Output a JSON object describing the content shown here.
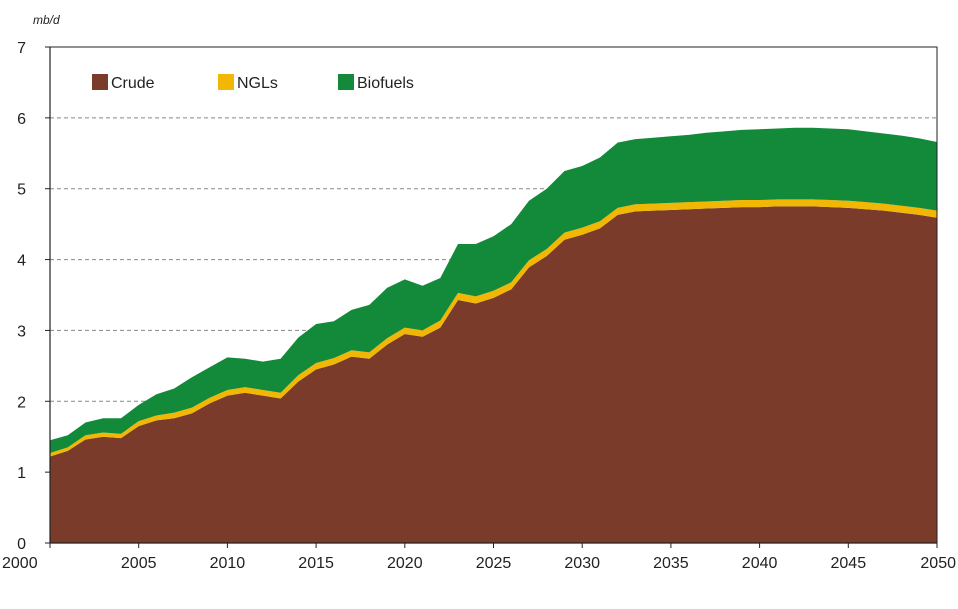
{
  "chart_data": {
    "type": "area",
    "stacked": true,
    "unit_label": "mb/d",
    "title": "",
    "xlabel": "",
    "ylabel": "",
    "xlim": [
      2000,
      2050
    ],
    "ylim": [
      0,
      7
    ],
    "x_ticks": [
      "2000",
      "2005",
      "2010",
      "2015",
      "2020",
      "2025",
      "2030",
      "2035",
      "2040",
      "2045",
      "2050"
    ],
    "y_ticks": [
      "0",
      "1",
      "2",
      "3",
      "4",
      "5",
      "6",
      "7"
    ],
    "grid": "horizontal dashed",
    "legend_position": "top-left",
    "legend": [
      {
        "name": "Crude",
        "color": "#7b3b2b"
      },
      {
        "name": "NGLs",
        "color": "#f2b705"
      },
      {
        "name": "Biofuels",
        "color": "#138a3a"
      }
    ],
    "x": [
      2000,
      2001,
      2002,
      2003,
      2004,
      2005,
      2006,
      2007,
      2008,
      2009,
      2010,
      2011,
      2012,
      2013,
      2014,
      2015,
      2016,
      2017,
      2018,
      2019,
      2020,
      2021,
      2022,
      2023,
      2024,
      2025,
      2026,
      2027,
      2028,
      2029,
      2030,
      2031,
      2032,
      2033,
      2034,
      2035,
      2036,
      2037,
      2038,
      2039,
      2040,
      2041,
      2042,
      2043,
      2044,
      2045,
      2046,
      2047,
      2048,
      2049,
      2050
    ],
    "series": [
      {
        "name": "Crude",
        "color": "#7b3b2b",
        "values": [
          1.22,
          1.3,
          1.46,
          1.5,
          1.48,
          1.65,
          1.73,
          1.76,
          1.83,
          1.97,
          2.08,
          2.12,
          2.08,
          2.04,
          2.28,
          2.45,
          2.52,
          2.63,
          2.6,
          2.8,
          2.95,
          2.91,
          3.04,
          3.43,
          3.38,
          3.46,
          3.58,
          3.89,
          4.05,
          4.28,
          4.35,
          4.44,
          4.63,
          4.68,
          4.69,
          4.7,
          4.71,
          4.72,
          4.73,
          4.74,
          4.74,
          4.75,
          4.75,
          4.75,
          4.74,
          4.73,
          4.71,
          4.69,
          4.66,
          4.63,
          4.59
        ]
      },
      {
        "name": "NGLs",
        "color": "#f2b705",
        "values": [
          0.05,
          0.05,
          0.06,
          0.06,
          0.06,
          0.07,
          0.07,
          0.08,
          0.08,
          0.08,
          0.08,
          0.08,
          0.08,
          0.08,
          0.09,
          0.09,
          0.09,
          0.09,
          0.09,
          0.09,
          0.09,
          0.09,
          0.1,
          0.1,
          0.1,
          0.1,
          0.1,
          0.1,
          0.1,
          0.1,
          0.1,
          0.1,
          0.1,
          0.1,
          0.1,
          0.1,
          0.1,
          0.1,
          0.1,
          0.1,
          0.1,
          0.1,
          0.1,
          0.1,
          0.1,
          0.1,
          0.1,
          0.1,
          0.1,
          0.1,
          0.1
        ]
      },
      {
        "name": "Biofuels",
        "color": "#138a3a",
        "values": [
          0.18,
          0.17,
          0.18,
          0.2,
          0.22,
          0.23,
          0.3,
          0.34,
          0.43,
          0.43,
          0.46,
          0.4,
          0.4,
          0.48,
          0.53,
          0.55,
          0.52,
          0.57,
          0.67,
          0.71,
          0.68,
          0.63,
          0.6,
          0.69,
          0.74,
          0.77,
          0.82,
          0.84,
          0.85,
          0.87,
          0.87,
          0.9,
          0.92,
          0.92,
          0.93,
          0.94,
          0.95,
          0.97,
          0.98,
          0.99,
          1.0,
          1.0,
          1.01,
          1.01,
          1.01,
          1.01,
          1.0,
          0.99,
          0.99,
          0.98,
          0.97
        ]
      }
    ]
  }
}
